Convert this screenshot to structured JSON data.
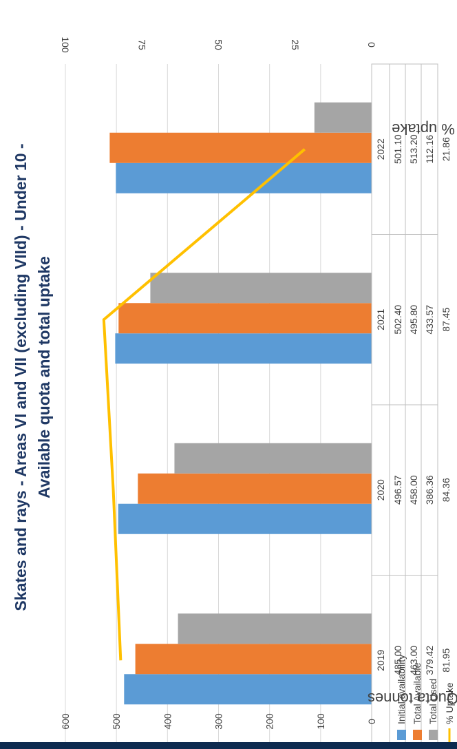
{
  "colors": {
    "initial": "#5b9bd5",
    "total_available": "#ed7d31",
    "total_used": "#a5a5a5",
    "uptake": "#ffc000",
    "grid": "#d9d9d9",
    "text": "#404040",
    "title": "#1f3864",
    "footer": "#0d2a4f"
  },
  "chart_data": {
    "type": "bar",
    "orientation": "rotated-90",
    "title": "Skates and rays - Areas VI and VII (excluding VIId) - Under 10 - Available quota and total uptake",
    "title_lines": [
      "Skates and rays - Areas VI and VII (excluding VIId) - Under 10 -",
      "Available quota and total uptake"
    ],
    "categories": [
      "2019",
      "2020",
      "2021",
      "2022"
    ],
    "primary_axis": {
      "label": "Quota tonnes",
      "min": 0,
      "max": 600,
      "ticks": [
        "0",
        "100",
        "200",
        "300",
        "400",
        "500",
        "600"
      ]
    },
    "secondary_axis": {
      "label": "% uptake",
      "min": 0,
      "max": 100,
      "ticks": [
        "0",
        "25",
        "50",
        "75",
        "100"
      ]
    },
    "series": [
      {
        "name": "Initial availability",
        "kind": "bar",
        "values": [
          485.0,
          496.57,
          502.4,
          501.1
        ],
        "labels": [
          "485.00",
          "496.57",
          "502.40",
          "501.10"
        ]
      },
      {
        "name": "Total Available",
        "kind": "bar",
        "values": [
          463.0,
          458.0,
          495.8,
          513.2
        ],
        "labels": [
          "463.00",
          "458.00",
          "495.80",
          "513.20"
        ]
      },
      {
        "name": "Total Used",
        "kind": "bar",
        "values": [
          379.42,
          386.36,
          433.57,
          112.16
        ],
        "labels": [
          "379.42",
          "386.36",
          "433.57",
          "112.16"
        ]
      },
      {
        "name": "% Uptake",
        "kind": "line",
        "axis": "secondary",
        "values": [
          81.95,
          84.36,
          87.45,
          21.86
        ],
        "labels": [
          "81.95",
          "84.36",
          "87.45",
          "21.86"
        ]
      }
    ],
    "grid": true,
    "legend": "data-table"
  }
}
